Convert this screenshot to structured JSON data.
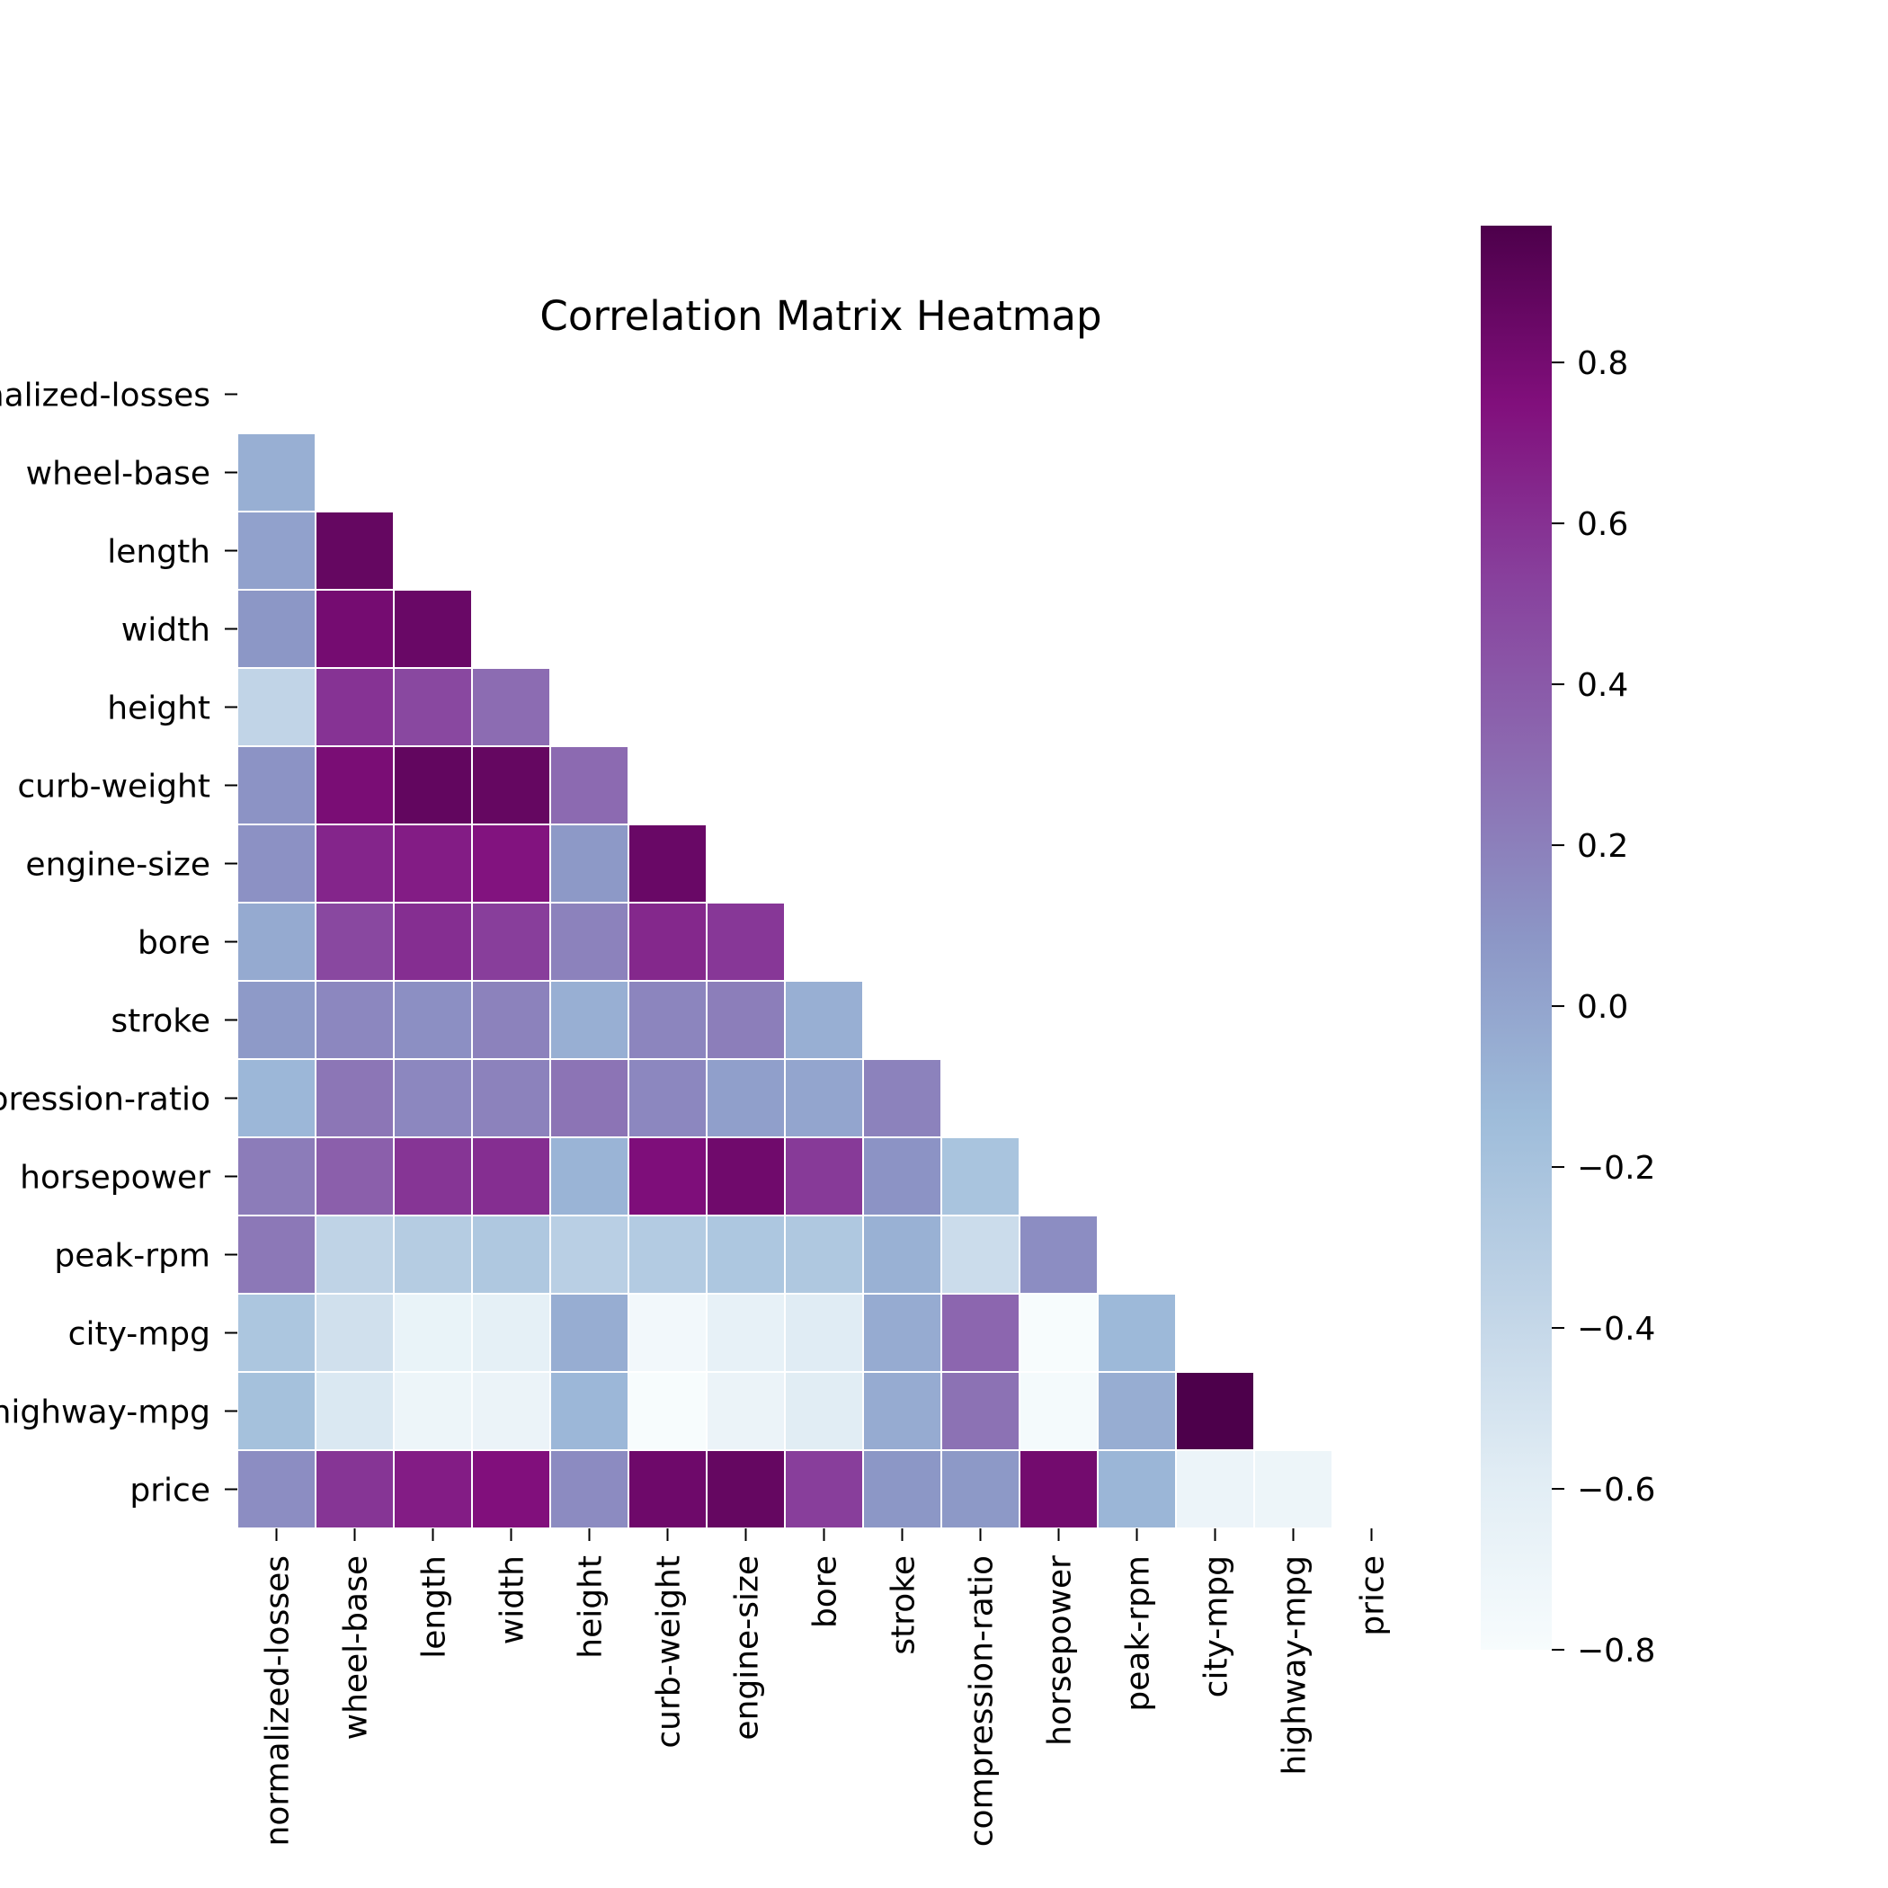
{
  "chart_data": {
    "type": "heatmap",
    "title": "Correlation Matrix Heatmap",
    "mask": "upper-triangle-including-diagonal",
    "row_labels": [
      "normalized-losses",
      "wheel-base",
      "length",
      "width",
      "height",
      "curb-weight",
      "engine-size",
      "bore",
      "stroke",
      "compression-ratio",
      "horsepower",
      "peak-rpm",
      "city-mpg",
      "highway-mpg",
      "price"
    ],
    "col_labels": [
      "normalized-losses",
      "wheel-base",
      "length",
      "width",
      "height",
      "curb-weight",
      "engine-size",
      "bore",
      "stroke",
      "compression-ratio",
      "horsepower",
      "peak-rpm",
      "city-mpg",
      "highway-mpg",
      "price"
    ],
    "rows": [
      [],
      [
        -0.06
      ],
      [
        0.02,
        0.87
      ],
      [
        0.08,
        0.8,
        0.85
      ],
      [
        -0.37,
        0.59,
        0.49,
        0.3
      ],
      [
        0.1,
        0.78,
        0.88,
        0.87,
        0.31
      ],
      [
        0.11,
        0.65,
        0.69,
        0.73,
        0.07,
        0.85
      ],
      [
        -0.03,
        0.49,
        0.61,
        0.54,
        0.19,
        0.64,
        0.57
      ],
      [
        0.06,
        0.16,
        0.12,
        0.19,
        -0.06,
        0.17,
        0.21,
        -0.06
      ],
      [
        -0.11,
        0.25,
        0.16,
        0.19,
        0.26,
        0.16,
        0.03,
        0.0,
        0.19
      ],
      [
        0.22,
        0.37,
        0.58,
        0.61,
        -0.09,
        0.76,
        0.82,
        0.56,
        0.1,
        -0.21
      ],
      [
        0.24,
        -0.36,
        -0.29,
        -0.25,
        -0.32,
        -0.28,
        -0.24,
        -0.25,
        -0.07,
        -0.44,
        0.13
      ],
      [
        -0.23,
        -0.47,
        -0.67,
        -0.63,
        -0.05,
        -0.75,
        -0.65,
        -0.58,
        -0.04,
        0.33,
        -0.8,
        -0.12
      ],
      [
        -0.18,
        -0.54,
        -0.7,
        -0.68,
        -0.11,
        -0.8,
        -0.68,
        -0.59,
        -0.04,
        0.27,
        -0.77,
        -0.05,
        0.97
      ],
      [
        0.13,
        0.58,
        0.69,
        0.75,
        0.14,
        0.83,
        0.87,
        0.54,
        0.08,
        0.07,
        0.81,
        -0.1,
        -0.69,
        -0.7
      ]
    ],
    "colorbar": {
      "colormap": "BuPu",
      "vmin": -0.8,
      "vmax": 0.97,
      "ticks": [
        0.8,
        0.6,
        0.4,
        0.2,
        0.0,
        -0.2,
        -0.4,
        -0.6,
        -0.8
      ],
      "tick_labels": [
        "0.8",
        "0.6",
        "0.4",
        "0.2",
        "0.0",
        "−0.2",
        "−0.4",
        "−0.6",
        "−0.8"
      ]
    }
  }
}
